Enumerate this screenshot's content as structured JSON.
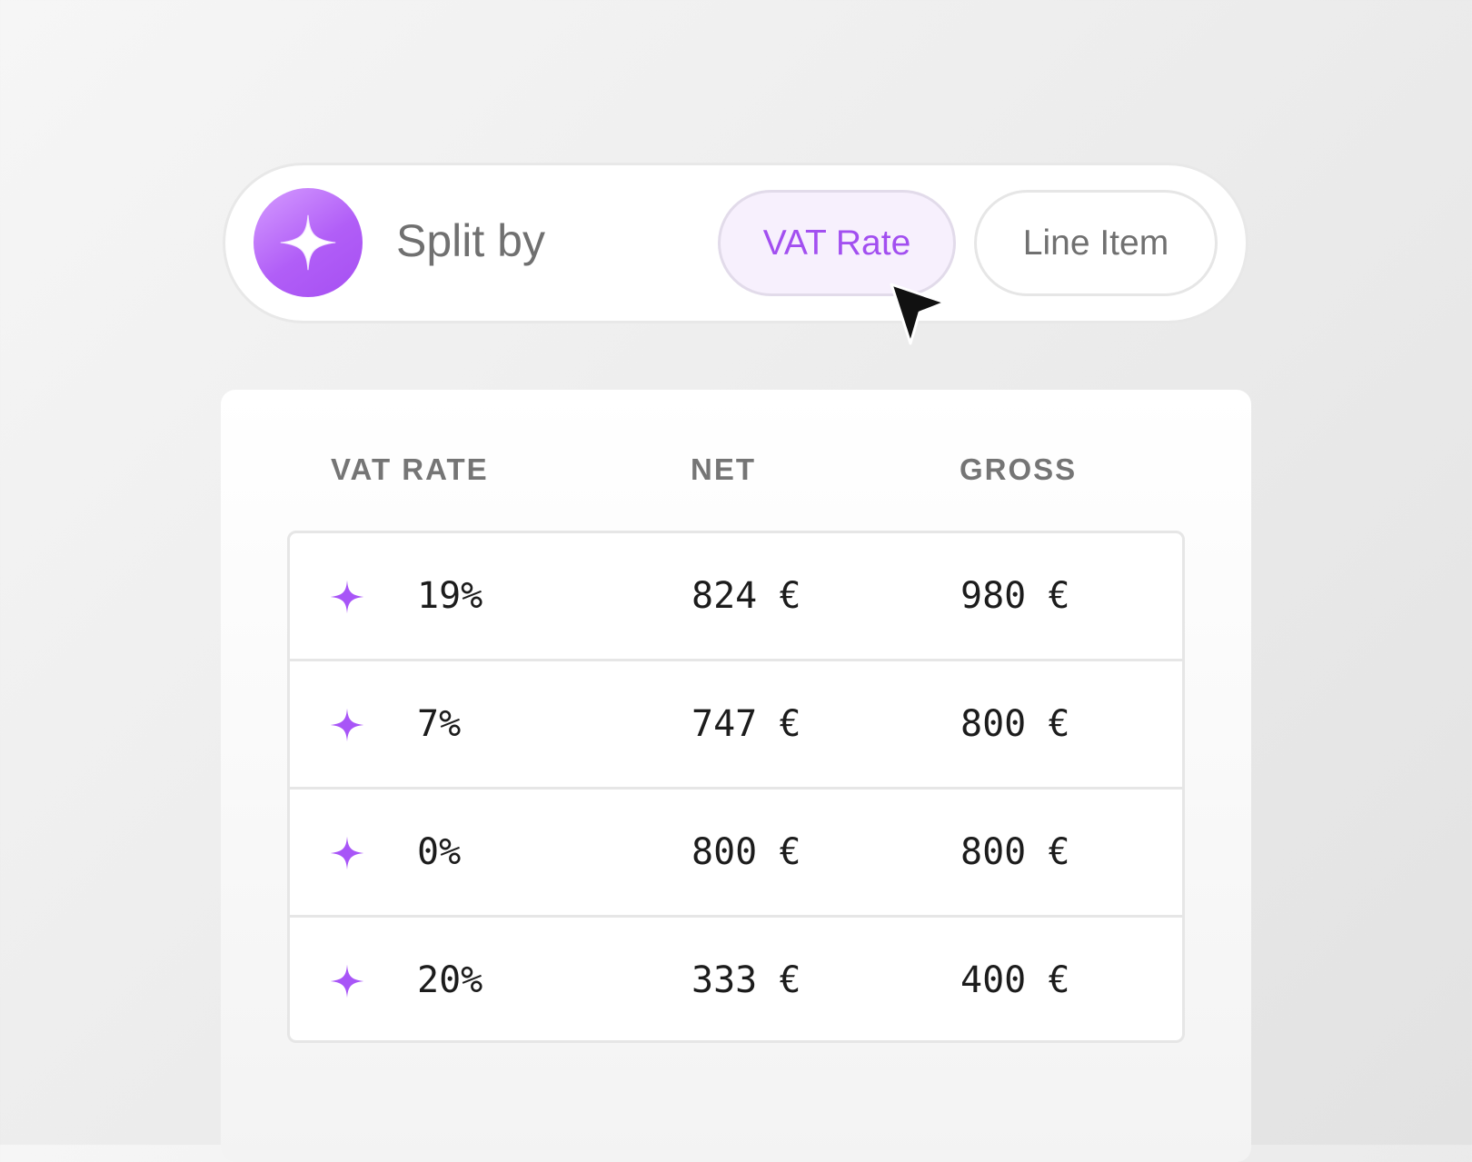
{
  "toolbar": {
    "label": "Split by",
    "icon": "sparkle-icon",
    "options": [
      {
        "label": "VAT Rate",
        "selected": true
      },
      {
        "label": "Line Item",
        "selected": false
      }
    ]
  },
  "colors": {
    "accent": "#a24ff0",
    "sparkle": "#a855f7",
    "selected_bg": "#f7f0fd"
  },
  "table": {
    "headers": [
      "VAT RATE",
      "NET",
      "GROSS"
    ],
    "rows": [
      {
        "rate": "19%",
        "net": "824 €",
        "gross": "980 €"
      },
      {
        "rate": "7%",
        "net": "747 €",
        "gross": "800 €"
      },
      {
        "rate": "0%",
        "net": "800 €",
        "gross": "800 €"
      },
      {
        "rate": "20%",
        "net": "333 €",
        "gross": "400 €"
      }
    ]
  }
}
